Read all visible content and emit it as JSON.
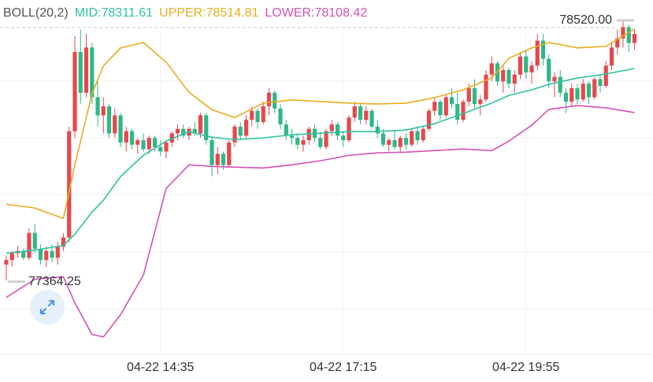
{
  "chart_data": {
    "type": "candlestick",
    "indicator": "BOLL(20,2)",
    "up_color": "#e5484d",
    "down_color": "#2db887",
    "ylim": [
      77060,
      78610
    ],
    "xlim": [
      0,
      110
    ],
    "xticks": [
      {
        "value": 27,
        "label": "04-22 14:35"
      },
      {
        "value": 59,
        "label": "04-22 17:15"
      },
      {
        "value": 91,
        "label": "04-22 19:55"
      }
    ],
    "max_marker": {
      "value": 78520,
      "label": "78520.00"
    },
    "min_marker": 77364.25,
    "candles": [
      [
        77440,
        77480,
        77370,
        77460
      ],
      [
        77460,
        77500,
        77430,
        77490
      ],
      [
        77490,
        77520,
        77470,
        77500
      ],
      [
        77500,
        77510,
        77460,
        77470
      ],
      [
        77470,
        77600,
        77460,
        77580
      ],
      [
        77580,
        77620,
        77490,
        77510
      ],
      [
        77510,
        77530,
        77440,
        77460
      ],
      [
        77460,
        77520,
        77430,
        77500
      ],
      [
        77500,
        77530,
        77450,
        77470
      ],
      [
        77470,
        77540,
        77440,
        77520
      ],
      [
        77520,
        77580,
        77500,
        77560
      ],
      [
        77560,
        78050,
        77540,
        78030
      ],
      [
        78030,
        78450,
        78000,
        78380
      ],
      [
        78380,
        78480,
        78150,
        78200
      ],
      [
        78200,
        78460,
        78180,
        78400
      ],
      [
        78400,
        78420,
        78150,
        78180
      ],
      [
        78180,
        78250,
        78050,
        78100
      ],
      [
        78100,
        78180,
        78020,
        78140
      ],
      [
        78140,
        78150,
        78000,
        78020
      ],
      [
        78020,
        78130,
        78000,
        78100
      ],
      [
        78100,
        78110,
        77960,
        77980
      ],
      [
        77980,
        78050,
        77940,
        78030
      ],
      [
        78030,
        78040,
        77950,
        77970
      ],
      [
        77970,
        78000,
        77930,
        77990
      ],
      [
        77990,
        78020,
        77940,
        77950
      ],
      [
        77950,
        78010,
        77930,
        78000
      ],
      [
        78000,
        78010,
        77940,
        77960
      ],
      [
        77960,
        77990,
        77920,
        77940
      ],
      [
        77940,
        77990,
        77910,
        77980
      ],
      [
        77980,
        78030,
        77960,
        78020
      ],
      [
        78020,
        78060,
        77990,
        78040
      ],
      [
        78040,
        78060,
        78000,
        78010
      ],
      [
        78010,
        78050,
        77990,
        78040
      ],
      [
        78040,
        78070,
        78010,
        78020
      ],
      [
        78020,
        78110,
        78000,
        78100
      ],
      [
        78100,
        78110,
        77970,
        77990
      ],
      [
        77990,
        78010,
        77830,
        77880
      ],
      [
        77880,
        77960,
        77840,
        77930
      ],
      [
        77930,
        77940,
        77860,
        77880
      ],
      [
        77880,
        77990,
        77870,
        77980
      ],
      [
        77980,
        78060,
        77960,
        78050
      ],
      [
        78050,
        78070,
        77990,
        78010
      ],
      [
        78010,
        78100,
        78000,
        78080
      ],
      [
        78080,
        78140,
        78050,
        78120
      ],
      [
        78120,
        78130,
        78040,
        78070
      ],
      [
        78070,
        78160,
        78060,
        78140
      ],
      [
        78140,
        78220,
        78100,
        78200
      ],
      [
        78200,
        78210,
        78110,
        78130
      ],
      [
        78130,
        78150,
        78040,
        78060
      ],
      [
        78060,
        78080,
        77990,
        78010
      ],
      [
        78010,
        78040,
        77970,
        78000
      ],
      [
        78000,
        78020,
        77950,
        77970
      ],
      [
        77970,
        78010,
        77940,
        77990
      ],
      [
        77990,
        78050,
        77970,
        78040
      ],
      [
        78040,
        78060,
        77980,
        78000
      ],
      [
        78000,
        78030,
        77950,
        77960
      ],
      [
        77960,
        78040,
        77950,
        78030
      ],
      [
        78030,
        78080,
        78010,
        78060
      ],
      [
        78060,
        78070,
        77990,
        78010
      ],
      [
        78010,
        78030,
        77960,
        77990
      ],
      [
        77990,
        78100,
        77980,
        78090
      ],
      [
        78090,
        78160,
        78070,
        78140
      ],
      [
        78140,
        78150,
        78060,
        78080
      ],
      [
        78080,
        78140,
        78060,
        78120
      ],
      [
        78120,
        78130,
        78040,
        78050
      ],
      [
        78050,
        78080,
        78000,
        78020
      ],
      [
        78020,
        78040,
        77960,
        77970
      ],
      [
        77970,
        78000,
        77940,
        77990
      ],
      [
        77990,
        78030,
        77950,
        77960
      ],
      [
        77960,
        78010,
        77940,
        78000
      ],
      [
        78000,
        78020,
        77950,
        77970
      ],
      [
        77970,
        78040,
        77960,
        78030
      ],
      [
        78030,
        78050,
        77970,
        77990
      ],
      [
        77990,
        78050,
        77980,
        78040
      ],
      [
        78040,
        78130,
        78030,
        78120
      ],
      [
        78120,
        78180,
        78100,
        78160
      ],
      [
        78160,
        78170,
        78080,
        78100
      ],
      [
        78100,
        78190,
        78090,
        78180
      ],
      [
        78180,
        78220,
        78130,
        78150
      ],
      [
        78150,
        78200,
        78060,
        78080
      ],
      [
        78080,
        78170,
        78070,
        78160
      ],
      [
        78160,
        78240,
        78140,
        78220
      ],
      [
        78220,
        78260,
        78130,
        78150
      ],
      [
        78150,
        78190,
        78100,
        78170
      ],
      [
        78170,
        78300,
        78160,
        78280
      ],
      [
        78280,
        78360,
        78250,
        78330
      ],
      [
        78330,
        78340,
        78230,
        78250
      ],
      [
        78250,
        78320,
        78200,
        78300
      ],
      [
        78300,
        78310,
        78220,
        78240
      ],
      [
        78240,
        78300,
        78200,
        78280
      ],
      [
        78280,
        78380,
        78260,
        78360
      ],
      [
        78360,
        78390,
        78260,
        78290
      ],
      [
        78290,
        78340,
        78240,
        78320
      ],
      [
        78320,
        78460,
        78300,
        78430
      ],
      [
        78430,
        78460,
        78320,
        78350
      ],
      [
        78350,
        78370,
        78220,
        78250
      ],
      [
        78250,
        78290,
        78180,
        78270
      ],
      [
        78270,
        78300,
        78180,
        78200
      ],
      [
        78200,
        78220,
        78110,
        78160
      ],
      [
        78160,
        78240,
        78140,
        78220
      ],
      [
        78220,
        78240,
        78150,
        78170
      ],
      [
        78170,
        78260,
        78160,
        78240
      ],
      [
        78240,
        78250,
        78150,
        78180
      ],
      [
        78180,
        78270,
        78170,
        78260
      ],
      [
        78260,
        78280,
        78200,
        78230
      ],
      [
        78230,
        78340,
        78220,
        78320
      ],
      [
        78320,
        78420,
        78300,
        78400
      ],
      [
        78400,
        78480,
        78370,
        78440
      ],
      [
        78440,
        78520,
        78400,
        78490
      ],
      [
        78490,
        78500,
        78380,
        78420
      ],
      [
        78420,
        78480,
        78390,
        78460
      ]
    ],
    "series": [
      {
        "name": "MID:",
        "current": 78311.61,
        "color": "#2fc2a0",
        "x": [
          0,
          5,
          10,
          12,
          15,
          17,
          20,
          24,
          28,
          32,
          36,
          40,
          45,
          50,
          55,
          60,
          65,
          70,
          75,
          80,
          85,
          88,
          92,
          95,
          100,
          105,
          110
        ],
        "values": [
          77490,
          77504,
          77525,
          77574,
          77672,
          77724,
          77829,
          77923,
          77986,
          78028,
          78003,
          77993,
          78000,
          78014,
          78021,
          78028,
          78028,
          78035,
          78063,
          78108,
          78154,
          78188,
          78213,
          78237,
          78265,
          78283,
          78307
        ]
      },
      {
        "name": "UPPER:",
        "current": 78514.81,
        "color": "#e8ad1e",
        "x": [
          0,
          5,
          10,
          12,
          15,
          17,
          20,
          24,
          28,
          32,
          36,
          40,
          45,
          50,
          55,
          60,
          65,
          70,
          75,
          80,
          85,
          88,
          92,
          95,
          100,
          105,
          110
        ],
        "values": [
          77707,
          77690,
          77644,
          77881,
          78195,
          78318,
          78398,
          78422,
          78335,
          78202,
          78125,
          78090,
          78154,
          78168,
          78161,
          78154,
          78150,
          78154,
          78178,
          78213,
          78265,
          78352,
          78398,
          78422,
          78398,
          78405,
          78482
        ]
      },
      {
        "name": "LOWER:",
        "current": 78108.42,
        "color": "#d651b6",
        "x": [
          0,
          5,
          10,
          12,
          15,
          17,
          20,
          24,
          28,
          32,
          36,
          40,
          45,
          50,
          55,
          60,
          65,
          70,
          75,
          80,
          85,
          88,
          92,
          95,
          100,
          105,
          110
        ],
        "values": [
          77295,
          77375,
          77386,
          77271,
          77131,
          77120,
          77218,
          77393,
          77777,
          77881,
          77874,
          77871,
          77867,
          77881,
          77899,
          77923,
          77934,
          77937,
          77944,
          77951,
          77944,
          77986,
          78056,
          78126,
          78143,
          78133,
          78112
        ]
      }
    ]
  }
}
